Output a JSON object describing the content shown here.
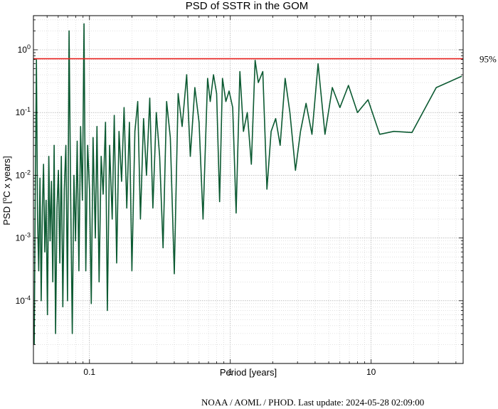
{
  "chart_data": {
    "type": "line",
    "title": "PSD of SSTR in the GOM",
    "xlabel": "Period [years]",
    "ylabel_main": "PSD [",
    "ylabel_sup": "o",
    "ylabel_rest": "C x years]",
    "xscale": "log",
    "yscale": "log",
    "xlim": [
      0.04,
      45
    ],
    "ylim": [
      1e-05,
      3.5
    ],
    "grid": true,
    "x_ticks": [
      {
        "value": 0.1,
        "label": "0.1"
      },
      {
        "value": 1,
        "label": "1"
      },
      {
        "value": 10,
        "label": "10"
      }
    ],
    "y_ticks": [
      {
        "value": 1,
        "base": "10",
        "exp": "0"
      },
      {
        "value": 0.1,
        "base": "10",
        "exp": "-1"
      },
      {
        "value": 0.01,
        "base": "10",
        "exp": "-2"
      },
      {
        "value": 0.001,
        "base": "10",
        "exp": "-3"
      },
      {
        "value": 0.0001,
        "base": "10",
        "exp": "-4"
      }
    ],
    "confidence": {
      "label": "95%",
      "value": 0.72,
      "color": "#e8201e"
    },
    "series": [
      {
        "color": "#0c5a32",
        "x": [
          0.0405,
          0.0412,
          0.042,
          0.0428,
          0.0436,
          0.0445,
          0.0454,
          0.0463,
          0.0472,
          0.0482,
          0.0492,
          0.0503,
          0.0514,
          0.0525,
          0.0537,
          0.0549,
          0.0561,
          0.0574,
          0.0588,
          0.0602,
          0.0616,
          0.0631,
          0.0647,
          0.0663,
          0.068,
          0.0698,
          0.0716,
          0.0735,
          0.0755,
          0.0775,
          0.0796,
          0.0818,
          0.0841,
          0.0865,
          0.089,
          0.0915,
          0.0942,
          0.097,
          0.1,
          0.103,
          0.106,
          0.11,
          0.113,
          0.117,
          0.121,
          0.125,
          0.13,
          0.134,
          0.139,
          0.145,
          0.15,
          0.156,
          0.162,
          0.169,
          0.176,
          0.184,
          0.192,
          0.2,
          0.21,
          0.22,
          0.23,
          0.242,
          0.254,
          0.268,
          0.282,
          0.298,
          0.315,
          0.333,
          0.353,
          0.375,
          0.4,
          0.426,
          0.455,
          0.49,
          0.52,
          0.56,
          0.6,
          0.64,
          0.69,
          0.72,
          0.76,
          0.8,
          0.84,
          0.88,
          0.93,
          0.98,
          1.04,
          1.1,
          1.17,
          1.24,
          1.32,
          1.41,
          1.5,
          1.58,
          1.7,
          1.82,
          1.95,
          2.1,
          2.26,
          2.45,
          2.65,
          2.9,
          3.15,
          3.45,
          3.8,
          4.2,
          4.7,
          5.3,
          6.0,
          6.9,
          8.0,
          9.5,
          11.5,
          14.5,
          19.5,
          29,
          44
        ],
        "values": [
          2e-05,
          0.004,
          0.7,
          0.002,
          0.0003,
          0.009,
          0.0001,
          0.003,
          0.015,
          0.0006,
          0.004,
          6e-05,
          0.02,
          0.0009,
          0.008,
          0.0002,
          0.03,
          3e-05,
          0.003,
          0.012,
          0.0004,
          0.02,
          8e-05,
          0.006,
          0.03,
          0.0001,
          2.0,
          0.005,
          3e-05,
          0.01,
          0.0009,
          0.035,
          0.0003,
          0.06,
          0.004,
          2.6,
          0.0003,
          0.03,
          0.006,
          9e-05,
          0.04,
          0.001,
          0.06,
          0.0002,
          0.02,
          0.005,
          0.07,
          7e-05,
          0.03,
          0.002,
          0.09,
          0.0004,
          0.05,
          0.008,
          0.12,
          0.003,
          0.07,
          0.0003,
          0.05,
          0.15,
          0.002,
          0.08,
          0.01,
          0.17,
          0.003,
          0.1,
          0.02,
          0.0007,
          0.15,
          0.04,
          0.00027,
          0.2,
          0.06,
          0.4,
          0.02,
          0.25,
          0.07,
          0.002,
          0.35,
          0.15,
          0.4,
          0.2,
          0.0038,
          0.35,
          0.15,
          0.22,
          0.12,
          0.0025,
          0.45,
          0.05,
          0.1,
          0.015,
          0.68,
          0.3,
          0.45,
          0.006,
          0.05,
          0.08,
          0.03,
          0.35,
          0.1,
          0.012,
          0.05,
          0.14,
          0.045,
          0.6,
          0.045,
          0.25,
          0.12,
          0.27,
          0.1,
          0.16,
          0.045,
          0.05,
          0.048,
          0.25,
          0.38
        ]
      }
    ],
    "footer": "NOAA / AOML / PHOD. Last update: 2024-05-28 02:09:00"
  }
}
